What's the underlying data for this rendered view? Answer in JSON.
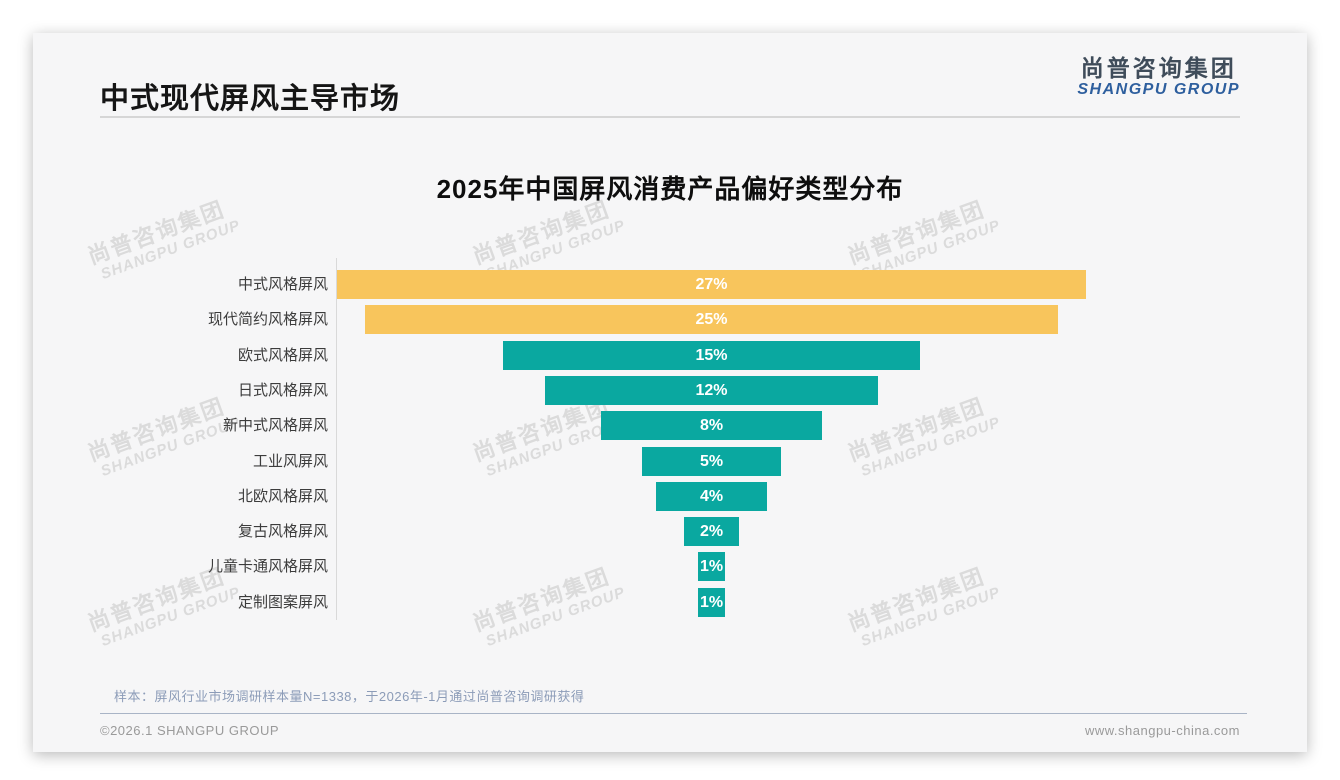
{
  "header": {
    "title": "中式现代屏风主导市场",
    "logo_cn": "尚普咨询集团",
    "logo_en": "SHANGPU GROUP"
  },
  "watermark": {
    "cn": "尚普咨询集团",
    "en": "SHANGPU GROUP"
  },
  "chart_data": {
    "type": "bar",
    "title": "2025年中国屏风消费产品偏好类型分布",
    "orientation": "horizontal-centered-funnel",
    "unit": "%",
    "xlim": [
      0,
      27
    ],
    "grid": false,
    "legend": "none",
    "categories": [
      "中式风格屏风",
      "现代简约风格屏风",
      "欧式风格屏风",
      "日式风格屏风",
      "新中式风格屏风",
      "工业风屏风",
      "北欧风格屏风",
      "复古风格屏风",
      "儿童卡通风格屏风",
      "定制图案屏风"
    ],
    "values": [
      27,
      25,
      15,
      12,
      8,
      5,
      4,
      2,
      1,
      1
    ],
    "value_labels": [
      "27%",
      "25%",
      "15%",
      "12%",
      "8%",
      "5%",
      "4%",
      "2%",
      "1%",
      "1%"
    ],
    "bar_colors": [
      "#F8C55C",
      "#F8C55C",
      "#0AA8A0",
      "#0AA8A0",
      "#0AA8A0",
      "#0AA8A0",
      "#0AA8A0",
      "#0AA8A0",
      "#0AA8A0",
      "#0AA8A0"
    ]
  },
  "colors": {
    "highlight_yellow": "#F8C55C",
    "base_teal": "#0AA8A0"
  },
  "footnote": "样本：屏风行业市场调研样本量N=1338，于2026年-1月通过尚普咨询调研获得",
  "footer": {
    "left": "©2026.1 SHANGPU GROUP",
    "right": "www.shangpu-china.com"
  }
}
